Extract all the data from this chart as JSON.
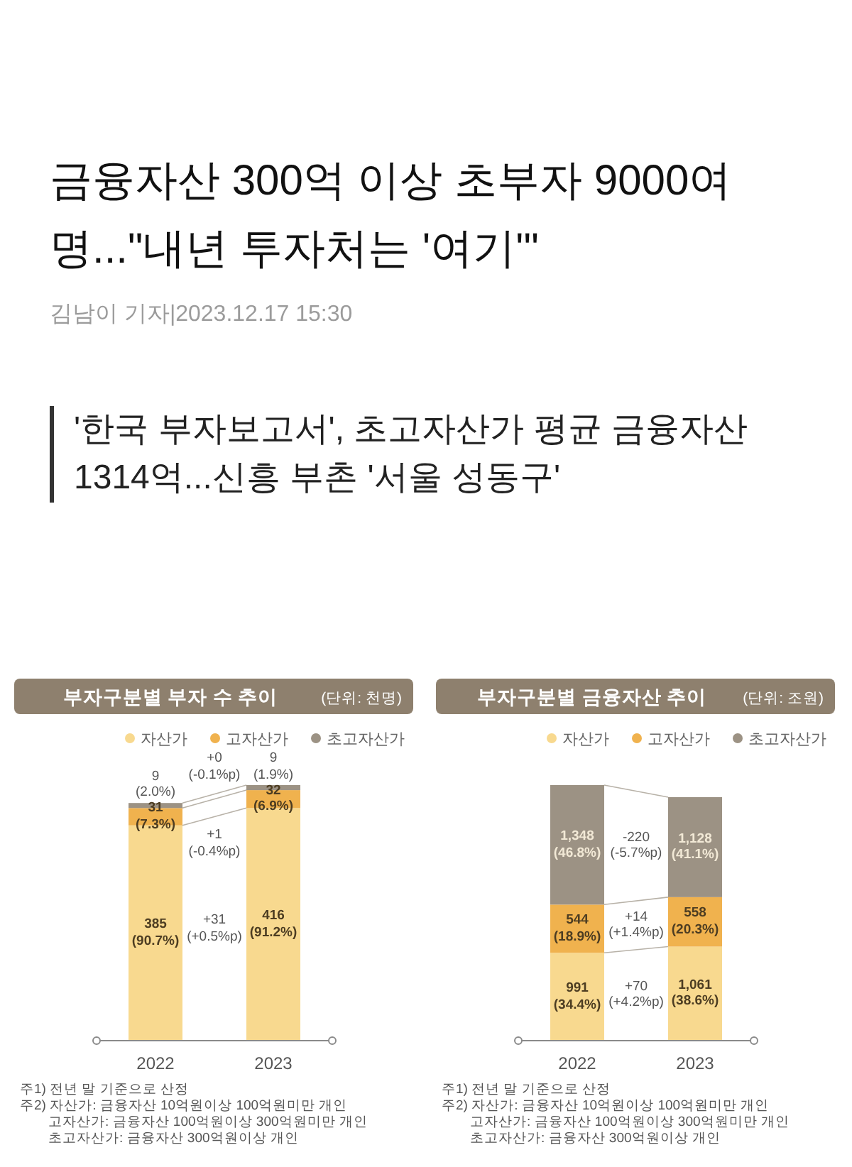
{
  "chart_data": [
    {
      "type": "other",
      "title": "금융자산 300억 이상 초부자 9000여 명...\"내년 투자처는 '여기'\"",
      "subtitle": "'한국 부자보고서', 초고자산가 평균 금융자산 1314억...신흥 부촌 '서울 성동구'",
      "annotations": [
        "김남이 기자|2023.12.17 15:30"
      ]
    },
    {
      "type": "bar",
      "stacked": true,
      "title": "부자구분별 부자 수 추이",
      "subtitle": "(단위: 천명)",
      "legend": "top right",
      "categories": [
        "2022",
        "2023"
      ],
      "series": [
        {
          "name": "자산가",
          "color": "#f8d98f",
          "values": [
            385,
            416
          ],
          "value_labels": [
            "385 (90.7%)",
            "416 (91.2%)"
          ]
        },
        {
          "name": "고자산가",
          "color": "#f0b24e",
          "values": [
            31,
            32
          ],
          "value_labels": [
            "31 (7.3%)",
            "32 (6.9%)"
          ]
        },
        {
          "name": "초고자산가",
          "color": "#9c9284",
          "values": [
            9,
            9
          ],
          "value_labels": [
            "9 (2.0%)",
            "9 (1.9%)"
          ]
        }
      ],
      "annotations": [
        "+0 (-0.1%p)",
        "+1 (-0.4%p)",
        "+31 (+0.5%p)",
        "주1) 전년 말 기준으로 산정",
        "주2) 자산가: 금융자산 10억원이상 100억원미만 개인",
        "고자산가: 금융자산 100억원이상 300억원미만 개인",
        "초고자산가: 금융자산 300억원이상 개인"
      ]
    },
    {
      "type": "bar",
      "stacked": true,
      "title": "부자구분별 금융자산 추이",
      "subtitle": "(단위: 조원)",
      "legend": "top right",
      "categories": [
        "2022",
        "2023"
      ],
      "series": [
        {
          "name": "자산가",
          "color": "#f8d98f",
          "values": [
            991,
            1061
          ],
          "value_labels": [
            "991 (34.4%)",
            "1,061 (38.6%)"
          ]
        },
        {
          "name": "고자산가",
          "color": "#f0b24e",
          "values": [
            544,
            558
          ],
          "value_labels": [
            "544 (18.9%)",
            "558 (20.3%)"
          ]
        },
        {
          "name": "초고자산가",
          "color": "#9c9284",
          "values": [
            1348,
            1128
          ],
          "value_labels": [
            "1,348 (46.8%)",
            "1,128 (41.1%)"
          ]
        }
      ],
      "annotations": [
        "-220 (-5.7%p)",
        "+14 (+1.4%p)",
        "+70 (+4.2%p)",
        "주1) 전년 말 기준으로 산정",
        "주2) 자산가: 금융자산 10억원이상 100억원미만 개인",
        "고자산가: 금융자산 100억원이상 300억원미만 개인",
        "초고자산가: 금융자산 300억원이상 개인"
      ]
    }
  ]
}
